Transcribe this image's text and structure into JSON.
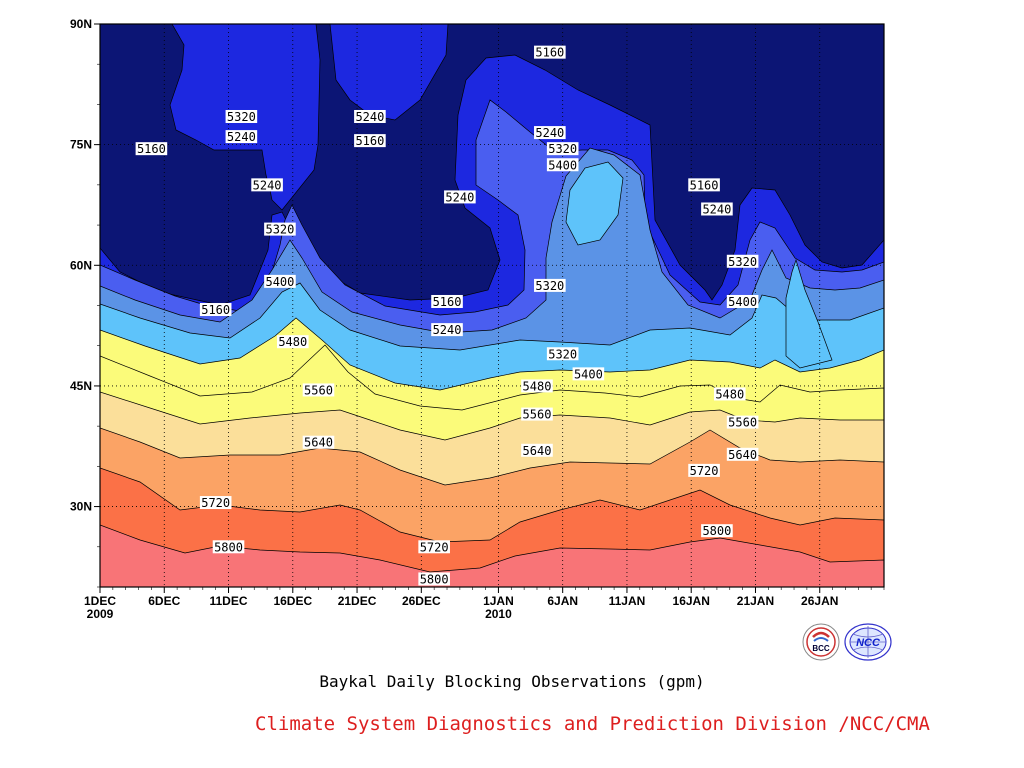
{
  "chart_data": {
    "type": "heatmap",
    "title": "Baykal Daily Blocking Observations (gpm)",
    "credit": "Climate System Diagnostics and Prediction Division /NCC/CMA",
    "logos": [
      "BCC",
      "NCC"
    ],
    "y_ticks": [
      "90N",
      "75N",
      "60N",
      "45N",
      "30N"
    ],
    "x_ticks": [
      {
        "label": "1DEC",
        "sub": "2009"
      },
      {
        "label": "6DEC",
        "sub": ""
      },
      {
        "label": "11DEC",
        "sub": ""
      },
      {
        "label": "16DEC",
        "sub": ""
      },
      {
        "label": "21DEC",
        "sub": ""
      },
      {
        "label": "26DEC",
        "sub": ""
      },
      {
        "label": "1JAN",
        "sub": "2010"
      },
      {
        "label": "6JAN",
        "sub": ""
      },
      {
        "label": "11JAN",
        "sub": ""
      },
      {
        "label": "16JAN",
        "sub": ""
      },
      {
        "label": "21JAN",
        "sub": ""
      },
      {
        "label": "26JAN",
        "sub": ""
      }
    ],
    "x_range": [
      "1DEC 2009",
      "31JAN 2010"
    ],
    "y_range": [
      20,
      90
    ],
    "y_unit": "latitude (degrees N)",
    "grid": true,
    "fill_colors": {
      "lt5160": "#0c1575",
      "5160_5240": "#1d28e0",
      "5240_5320": "#4a5ef0",
      "5320_5400": "#5b93e6",
      "5400_5480": "#5ec3fa",
      "5480_5560": "#fbfb7a",
      "5560_5640": "#fbdf9a",
      "5640_5720": "#fba365",
      "5720_5800": "#fb7147",
      "gt5800": "#f87477"
    },
    "contour_levels": [
      5160,
      5240,
      5320,
      5400,
      5480,
      5560,
      5640,
      5720,
      5800
    ],
    "contour_labels": [
      {
        "text": "5160",
        "date": "5DEC",
        "lat": 74.5
      },
      {
        "text": "5320",
        "date": "12DEC",
        "lat": 78.5
      },
      {
        "text": "5240",
        "date": "12DEC",
        "lat": 76
      },
      {
        "text": "5240",
        "date": "22DEC",
        "lat": 78.5
      },
      {
        "text": "5160",
        "date": "22DEC",
        "lat": 75.5
      },
      {
        "text": "5160",
        "date": "5JAN",
        "lat": 86.5
      },
      {
        "text": "5240",
        "date": "5JAN",
        "lat": 76.5
      },
      {
        "text": "5320",
        "date": "6JAN",
        "lat": 74.5
      },
      {
        "text": "5400",
        "date": "6JAN",
        "lat": 72.5
      },
      {
        "text": "5240",
        "date": "14DEC",
        "lat": 70
      },
      {
        "text": "5320",
        "date": "15DEC",
        "lat": 64.5
      },
      {
        "text": "5240",
        "date": "29DEC",
        "lat": 68.5
      },
      {
        "text": "5160",
        "date": "17JAN",
        "lat": 70
      },
      {
        "text": "5240",
        "date": "18JAN",
        "lat": 67
      },
      {
        "text": "5320",
        "date": "5JAN",
        "lat": 57.5
      },
      {
        "text": "5320",
        "date": "20JAN",
        "lat": 60.5
      },
      {
        "text": "5400",
        "date": "15DEC",
        "lat": 58
      },
      {
        "text": "5400",
        "date": "20JAN",
        "lat": 55.5
      },
      {
        "text": "5160",
        "date": "10DEC",
        "lat": 54.5
      },
      {
        "text": "5160",
        "date": "28DEC",
        "lat": 55.5
      },
      {
        "text": "5240",
        "date": "28DEC",
        "lat": 52
      },
      {
        "text": "5480",
        "date": "16DEC",
        "lat": 50.5
      },
      {
        "text": "5320",
        "date": "6JAN",
        "lat": 49
      },
      {
        "text": "5400",
        "date": "8JAN",
        "lat": 46.5
      },
      {
        "text": "5560",
        "date": "18DEC",
        "lat": 44.5
      },
      {
        "text": "5480",
        "date": "4JAN",
        "lat": 45
      },
      {
        "text": "5480",
        "date": "19JAN",
        "lat": 44
      },
      {
        "text": "5560",
        "date": "4JAN",
        "lat": 41.5
      },
      {
        "text": "5560",
        "date": "20JAN",
        "lat": 40.5
      },
      {
        "text": "5640",
        "date": "18DEC",
        "lat": 38
      },
      {
        "text": "5640",
        "date": "4JAN",
        "lat": 37
      },
      {
        "text": "5640",
        "date": "20JAN",
        "lat": 36.5
      },
      {
        "text": "5720",
        "date": "17JAN",
        "lat": 34.5
      },
      {
        "text": "5720",
        "date": "10DEC",
        "lat": 30.5
      },
      {
        "text": "5800",
        "date": "11DEC",
        "lat": 25
      },
      {
        "text": "5720",
        "date": "27DEC",
        "lat": 25
      },
      {
        "text": "5800",
        "date": "18JAN",
        "lat": 27
      },
      {
        "text": "5800",
        "date": "27DEC",
        "lat": 21
      }
    ]
  }
}
